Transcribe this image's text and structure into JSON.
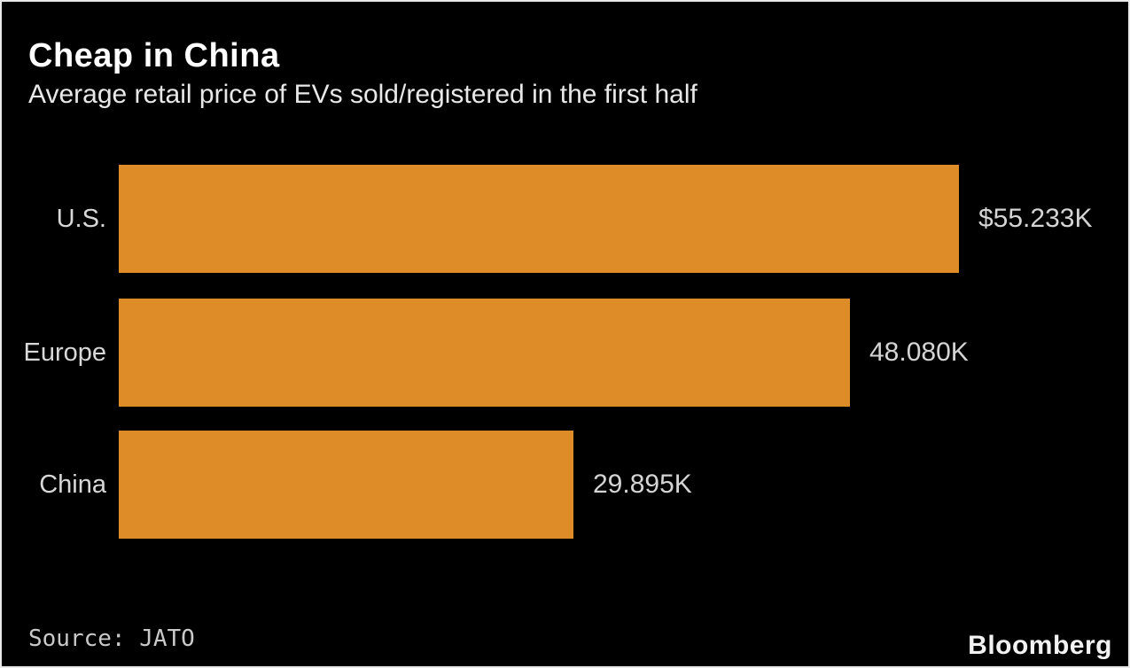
{
  "header": {
    "title": "Cheap in China",
    "subtitle": "Average retail price of EVs sold/registered in the first half"
  },
  "chart_data": {
    "type": "bar",
    "orientation": "horizontal",
    "title": "Cheap in China",
    "subtitle": "Average retail price of EVs sold/registered in the first half",
    "categories": [
      "U.S.",
      "Europe",
      "China"
    ],
    "values": [
      55.233,
      48.08,
      29.895
    ],
    "value_labels": [
      "$55.233K",
      "48.080K",
      "29.895K"
    ],
    "xlim": [
      0,
      55.233
    ],
    "grid": false,
    "legend": false,
    "bar_color": "#de8c28"
  },
  "footer": {
    "source": "Source: JATO",
    "brand": "Bloomberg"
  },
  "colors": {
    "background": "#000000",
    "bar": "#de8c28",
    "title": "#ffffff",
    "subtitle": "#e8e8e8",
    "labels": "#d6d6d6",
    "frame_border": "#e8e8e8"
  }
}
